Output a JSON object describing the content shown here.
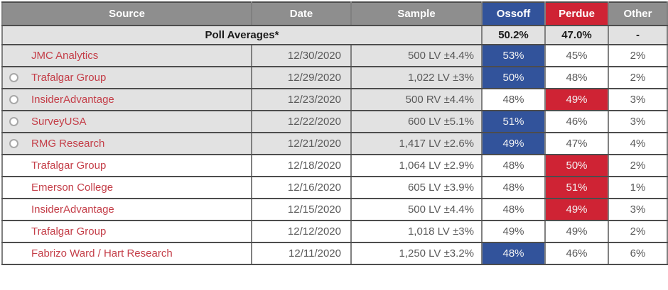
{
  "colors": {
    "header_gray": "#8e8e8e",
    "ossoff_blue": "#32539b",
    "perdue_red": "#cf2334",
    "row_shaded": "#e2e2e2",
    "row_white": "#ffffff",
    "source_red": "#c43e48",
    "cell_text": "#595959",
    "border_dark": "#4d4d4d",
    "border_light": "#808080"
  },
  "table": {
    "columns": [
      {
        "key": "source",
        "label": "Source"
      },
      {
        "key": "date",
        "label": "Date"
      },
      {
        "key": "sample",
        "label": "Sample"
      },
      {
        "key": "ossoff",
        "label": "Ossoff"
      },
      {
        "key": "perdue",
        "label": "Perdue"
      },
      {
        "key": "other",
        "label": "Other"
      }
    ],
    "averages": {
      "label": "Poll Averages*",
      "ossoff": "50.2%",
      "perdue": "47.0%",
      "other": "-"
    },
    "rows": [
      {
        "source": "JMC Analytics",
        "radio": false,
        "shaded": true,
        "date": "12/30/2020",
        "sample": "500 LV ±4.4%",
        "ossoff": "53%",
        "perdue": "45%",
        "other": "2%",
        "highlight": "ossoff"
      },
      {
        "source": "Trafalgar Group",
        "radio": true,
        "shaded": true,
        "date": "12/29/2020",
        "sample": "1,022 LV ±3%",
        "ossoff": "50%",
        "perdue": "48%",
        "other": "2%",
        "highlight": "ossoff"
      },
      {
        "source": "InsiderAdvantage",
        "radio": true,
        "shaded": true,
        "date": "12/23/2020",
        "sample": "500 RV ±4.4%",
        "ossoff": "48%",
        "perdue": "49%",
        "other": "3%",
        "highlight": "perdue"
      },
      {
        "source": "SurveyUSA",
        "radio": true,
        "shaded": true,
        "date": "12/22/2020",
        "sample": "600 LV ±5.1%",
        "ossoff": "51%",
        "perdue": "46%",
        "other": "3%",
        "highlight": "ossoff"
      },
      {
        "source": "RMG Research",
        "radio": true,
        "shaded": true,
        "date": "12/21/2020",
        "sample": "1,417 LV ±2.6%",
        "ossoff": "49%",
        "perdue": "47%",
        "other": "4%",
        "highlight": "ossoff"
      },
      {
        "source": "Trafalgar Group",
        "radio": false,
        "shaded": false,
        "date": "12/18/2020",
        "sample": "1,064 LV ±2.9%",
        "ossoff": "48%",
        "perdue": "50%",
        "other": "2%",
        "highlight": "perdue"
      },
      {
        "source": "Emerson College",
        "radio": false,
        "shaded": false,
        "date": "12/16/2020",
        "sample": "605 LV ±3.9%",
        "ossoff": "48%",
        "perdue": "51%",
        "other": "1%",
        "highlight": "perdue"
      },
      {
        "source": "InsiderAdvantage",
        "radio": false,
        "shaded": false,
        "date": "12/15/2020",
        "sample": "500 LV ±4.4%",
        "ossoff": "48%",
        "perdue": "49%",
        "other": "3%",
        "highlight": "perdue"
      },
      {
        "source": "Trafalgar Group",
        "radio": false,
        "shaded": false,
        "date": "12/12/2020",
        "sample": "1,018 LV ±3%",
        "ossoff": "49%",
        "perdue": "49%",
        "other": "2%",
        "highlight": "none"
      },
      {
        "source": "Fabrizo Ward / Hart Research",
        "radio": false,
        "shaded": false,
        "date": "12/11/2020",
        "sample": "1,250 LV ±3.2%",
        "ossoff": "48%",
        "perdue": "46%",
        "other": "6%",
        "highlight": "ossoff"
      }
    ]
  }
}
